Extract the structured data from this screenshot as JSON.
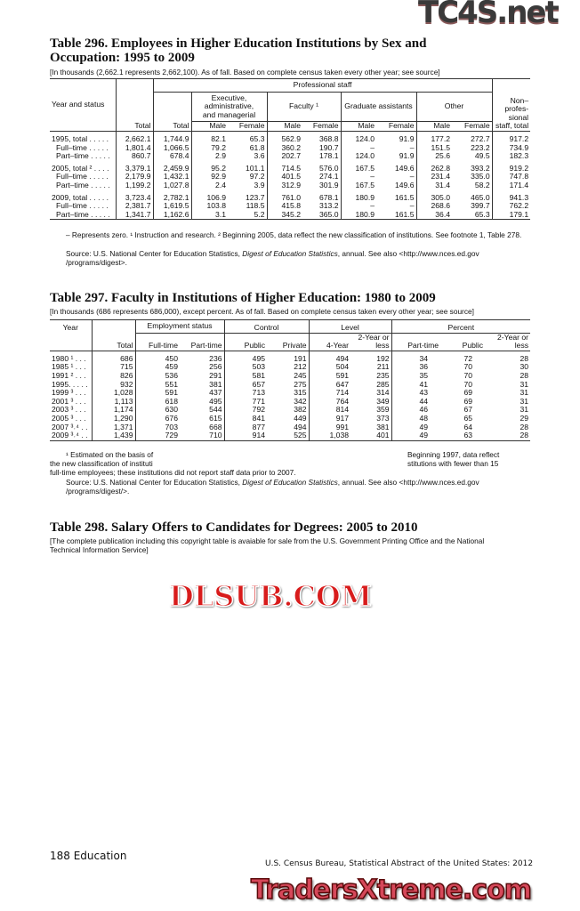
{
  "watermarks": {
    "top": "TC4S.net",
    "middle": "DLSUB.COM",
    "bottom": "TradersXtreme.com"
  },
  "t296": {
    "title": "Table 296. Employees in Higher Education Institutions by Sex and Occupation: 1995 to 2009",
    "subtitle": "[In thousands (2,662.1 represents 2,662,100). As of fall. Based on complete census taken every other year; see source]",
    "headers": {
      "year": "Year and status",
      "professional": "Professional staff",
      "exec": "Executive, administrative, and managerial",
      "faculty": "Faculty ¹",
      "grad": "Graduate assistants",
      "other": "Other",
      "nonprof": "Non– profes- sional staff, total",
      "total": "Total",
      "male": "Male",
      "female": "Female"
    },
    "rows": [
      {
        "label": "1995, total . . . . .",
        "bold": true,
        "values": [
          "2,662.1",
          "1,744.9",
          "82.1",
          "65.3",
          "562.9",
          "368.8",
          "124.0",
          "91.9",
          "177.2",
          "272.7",
          "917.2"
        ]
      },
      {
        "label": "Full–time . . . . .",
        "values": [
          "1,801.4",
          "1,066.5",
          "79.2",
          "61.8",
          "360.2",
          "190.7",
          "–",
          "–",
          "151.5",
          "223.2",
          "734.9"
        ]
      },
      {
        "label": "Part–time . . . . .",
        "values": [
          "860.7",
          "678.4",
          "2.9",
          "3.6",
          "202.7",
          "178.1",
          "124.0",
          "91.9",
          "25.6",
          "49.5",
          "182.3"
        ]
      },
      {
        "label": "2005, total ² . . . .",
        "bold": true,
        "values": [
          "3,379.1",
          "2,459.9",
          "95.2",
          "101.1",
          "714.5",
          "576.0",
          "167.5",
          "149.6",
          "262.8",
          "393.2",
          "919.2"
        ]
      },
      {
        "label": "Full–time . . . . .",
        "values": [
          "2,179.9",
          "1,432.1",
          "92.9",
          "97.2",
          "401.5",
          "274.1",
          "–",
          "–",
          "231.4",
          "335.0",
          "747.8"
        ]
      },
      {
        "label": "Part–time . . . . .",
        "values": [
          "1,199.2",
          "1,027.8",
          "2.4",
          "3.9",
          "312.9",
          "301.9",
          "167.5",
          "149.6",
          "31.4",
          "58.2",
          "171.4"
        ]
      },
      {
        "label": "2009, total . . . . .",
        "bold": true,
        "values": [
          "3,723.4",
          "2,782.1",
          "106.9",
          "123.7",
          "761.0",
          "678.1",
          "180.9",
          "161.5",
          "305.0",
          "465.0",
          "941.3"
        ]
      },
      {
        "label": "Full–time . . . . .",
        "values": [
          "2,381.7",
          "1,619.5",
          "103.8",
          "118.5",
          "415.8",
          "313.2",
          "–",
          "–",
          "268.6",
          "399.7",
          "762.2"
        ]
      },
      {
        "label": "Part–time . . . . .",
        "values": [
          "1,341.7",
          "1,162.6",
          "3.1",
          "5.2",
          "345.2",
          "365.0",
          "180.9",
          "161.5",
          "36.4",
          "65.3",
          "179.1"
        ]
      }
    ],
    "footnote": "– Represents zero. ¹ Instruction and research. ² Beginning 2005, data reflect the new classification of institutions. See footnote 1, Table 278.",
    "source_pre": "Source: U.S. National Center for Education Statistics, ",
    "source_italic": "Digest of Education Statistics",
    "source_post": ", annual. See also <http://www.nces.ed.gov /programs/digest>."
  },
  "t297": {
    "title": "Table 297. Faculty in Institutions of Higher Education: 1980 to 2009",
    "subtitle": "[In thousands (686 represents 686,000), except percent. As of fall. Based on complete census taken every other year; see source]",
    "headers": {
      "year": "Year",
      "total": "Total",
      "emp": "Employment status",
      "control": "Control",
      "level": "Level",
      "percent": "Percent",
      "fulltime": "Full-time",
      "parttime": "Part-time",
      "public": "Public",
      "private": "Private",
      "fouryear": "4-Year",
      "twoyear": "2-Year or less"
    },
    "rows": [
      {
        "label": "1980 ¹ . . .",
        "values": [
          "686",
          "450",
          "236",
          "495",
          "191",
          "494",
          "192",
          "34",
          "72",
          "28"
        ]
      },
      {
        "label": "1985 ¹ . . .",
        "values": [
          "715",
          "459",
          "256",
          "503",
          "212",
          "504",
          "211",
          "36",
          "70",
          "30"
        ]
      },
      {
        "label": "1991 ² . . .",
        "values": [
          "826",
          "536",
          "291",
          "581",
          "245",
          "591",
          "235",
          "35",
          "70",
          "28"
        ]
      },
      {
        "label": "1995. . . . .",
        "values": [
          "932",
          "551",
          "381",
          "657",
          "275",
          "647",
          "285",
          "41",
          "70",
          "31"
        ]
      },
      {
        "label": "1999 ³ . . .",
        "values": [
          "1,028",
          "591",
          "437",
          "713",
          "315",
          "714",
          "314",
          "43",
          "69",
          "31"
        ]
      },
      {
        "label": "2001 ³ . . .",
        "values": [
          "1,113",
          "618",
          "495",
          "771",
          "342",
          "764",
          "349",
          "44",
          "69",
          "31"
        ]
      },
      {
        "label": "2003 ³ . . .",
        "values": [
          "1,174",
          "630",
          "544",
          "792",
          "382",
          "814",
          "359",
          "46",
          "67",
          "31"
        ]
      },
      {
        "label": "2005 ³ . . .",
        "values": [
          "1,290",
          "676",
          "615",
          "841",
          "449",
          "917",
          "373",
          "48",
          "65",
          "29"
        ]
      },
      {
        "label": "2007 ³˒⁴ . .",
        "values": [
          "1,371",
          "703",
          "668",
          "877",
          "494",
          "991",
          "381",
          "49",
          "64",
          "28"
        ]
      },
      {
        "label": "2009 ³˒⁴ . .",
        "values": [
          "1,439",
          "729",
          "710",
          "914",
          "525",
          "1,038",
          "401",
          "49",
          "63",
          "28"
        ]
      }
    ],
    "footnote1": "¹ Estimated on the basis of",
    "footnote1_end": "Beginning 1997, data reflect",
    "footnote2": "the new classification of instituti",
    "footnote2_end": "stitutions with fewer than 15",
    "footnote3": "full-time employees; these institutions did not report staff data prior to 2007.",
    "source_pre": "Source: U.S. National Center for Education Statistics, ",
    "source_italic": "Digest of Education Statistics",
    "source_post": ", annual. See also <http://www.nces.ed.gov /programs/digest/>."
  },
  "t298": {
    "title": "Table 298. Salary Offers to Candidates for Degrees: 2005 to 2010",
    "subtitle": "[The complete publication including this copyright table is avaiable for sale from the U.S. Government Printing Office and the National Technical Information Service]"
  },
  "footer": {
    "page": "188  Education",
    "publication": "U.S. Census Bureau, Statistical Abstract of the United States: 2012"
  }
}
